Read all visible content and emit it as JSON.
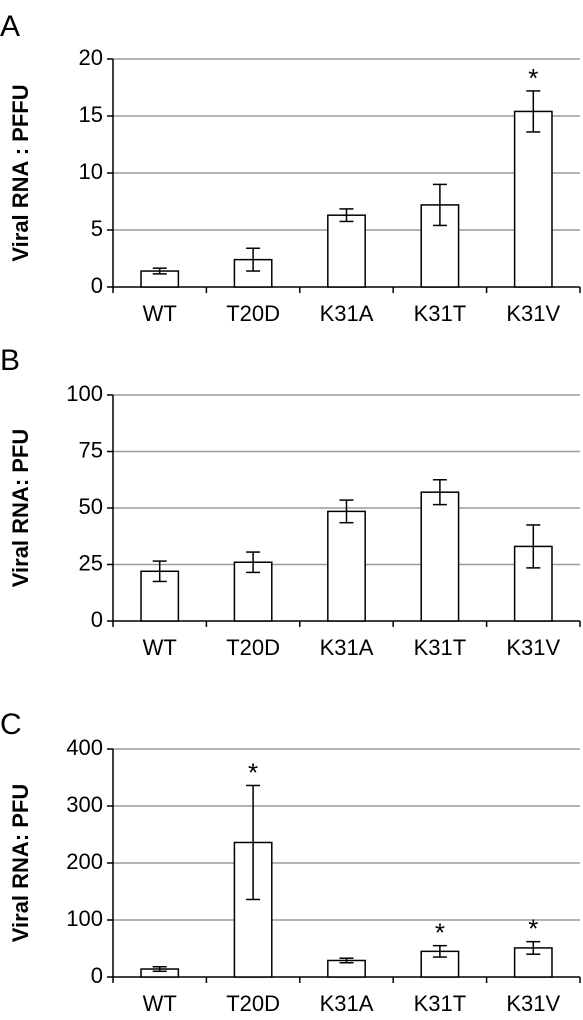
{
  "chart_data": [
    {
      "panel": "A",
      "type": "bar",
      "ylabel": "Viral RNA : PFFU",
      "ylim": [
        0,
        20
      ],
      "yticks": [
        0,
        5,
        10,
        15,
        20
      ],
      "grid": true,
      "categories": [
        "WT",
        "T20D",
        "K31A",
        "K31T",
        "K31V"
      ],
      "values": [
        1.4,
        2.4,
        6.3,
        7.2,
        15.4
      ],
      "errors": [
        0.25,
        1.0,
        0.55,
        1.8,
        1.8
      ],
      "significant": [
        false,
        false,
        false,
        false,
        true
      ],
      "annotation": "*"
    },
    {
      "panel": "B",
      "type": "bar",
      "ylabel": "Viral RNA: PFU",
      "ylim": [
        0,
        100
      ],
      "yticks": [
        0,
        25,
        50,
        75,
        100
      ],
      "grid": true,
      "categories": [
        "WT",
        "T20D",
        "K31A",
        "K31T",
        "K31V"
      ],
      "values": [
        22,
        26,
        48.5,
        57,
        33
      ],
      "errors": [
        4.5,
        4.5,
        5,
        5.5,
        9.5
      ],
      "significant": [
        false,
        false,
        false,
        false,
        false
      ],
      "annotation": "*"
    },
    {
      "panel": "C",
      "type": "bar",
      "ylabel": "Viral RNA: PFU",
      "ylim": [
        0,
        400
      ],
      "yticks": [
        0,
        100,
        200,
        300,
        400
      ],
      "grid": true,
      "categories": [
        "WT",
        "T20D",
        "K31A",
        "K31T",
        "K31V"
      ],
      "values": [
        14,
        236,
        29,
        45,
        51
      ],
      "errors": [
        4,
        100,
        4,
        10,
        11
      ],
      "significant": [
        false,
        true,
        false,
        true,
        true
      ],
      "annotation": "*"
    }
  ]
}
